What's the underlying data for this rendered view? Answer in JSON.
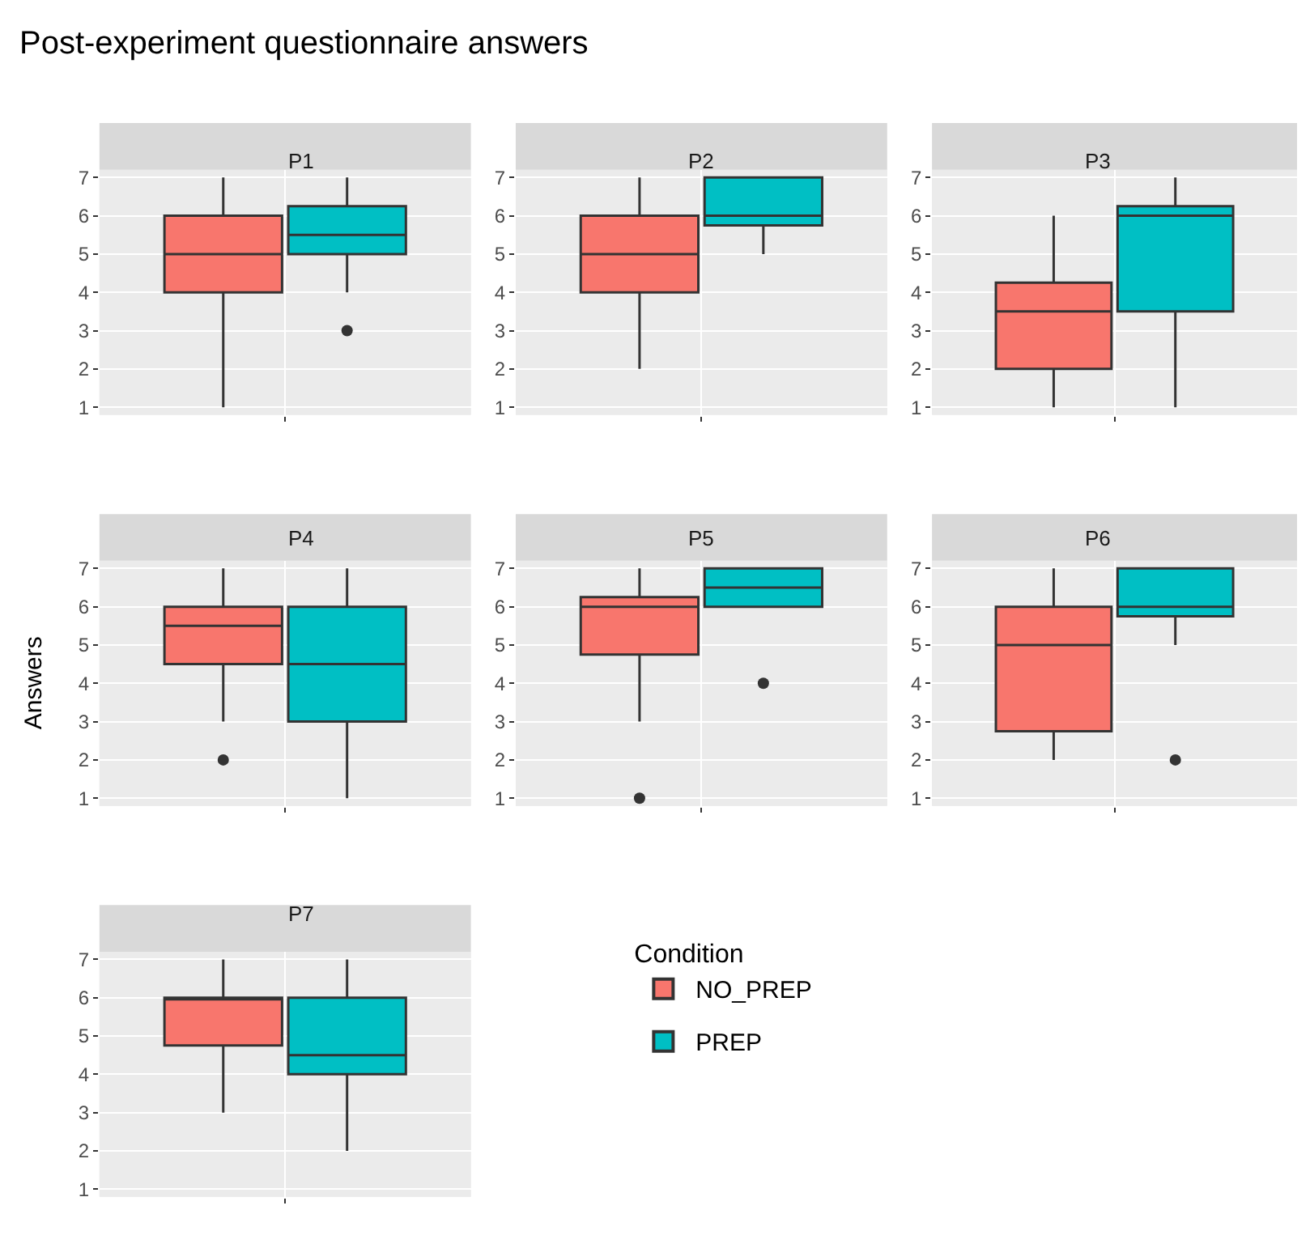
{
  "chart_data": [
    {
      "type": "box",
      "title": "P1",
      "annotations": [
        "Post-experiment questionnaire answers"
      ],
      "categories": [
        null
      ],
      "ylim": [
        0.8,
        7.2
      ],
      "yticks": [
        1,
        2,
        3,
        4,
        5,
        6,
        7
      ],
      "grid": true,
      "legend": false,
      "series": [
        {
          "color": "#f8766d",
          "boxes": [
            {
              "low": 1,
              "q1": 4,
              "median": 5,
              "q3": 6,
              "high": 7
            }
          ]
        },
        {
          "color": "#00bfc4",
          "boxes": [
            {
              "low": 4,
              "q1": 5,
              "median": 5.5,
              "q3": 6.25,
              "high": 7,
              "outliers": [
                3
              ]
            }
          ]
        }
      ]
    },
    {
      "type": "box",
      "title": "P2",
      "categories": [
        null
      ],
      "ylim": [
        0.8,
        7.2
      ],
      "yticks": [
        1,
        2,
        3,
        4,
        5,
        6,
        7
      ],
      "grid": true,
      "legend": false,
      "series": [
        {
          "color": "#f8766d",
          "boxes": [
            {
              "low": 2,
              "q1": 4,
              "median": 5,
              "q3": 6,
              "high": 7
            }
          ]
        },
        {
          "color": "#00bfc4",
          "boxes": [
            {
              "low": 5,
              "q1": 5.75,
              "median": 6,
              "q3": 7,
              "high": 7
            }
          ]
        }
      ]
    },
    {
      "type": "box",
      "title": "P3",
      "categories": [
        null
      ],
      "ylim": [
        0.8,
        7.2
      ],
      "yticks": [
        1,
        2,
        3,
        4,
        5,
        6,
        7
      ],
      "grid": true,
      "legend": false,
      "series": [
        {
          "color": "#f8766d",
          "boxes": [
            {
              "low": 1,
              "q1": 2,
              "median": 3.5,
              "q3": 4.25,
              "high": 6
            }
          ]
        },
        {
          "color": "#00bfc4",
          "boxes": [
            {
              "low": 1,
              "q1": 3.5,
              "median": 6,
              "q3": 6.25,
              "high": 7
            }
          ]
        }
      ]
    },
    {
      "type": "box",
      "title": "P4",
      "ylabel": "Answers",
      "categories": [
        null
      ],
      "ylim": [
        0.8,
        7.2
      ],
      "yticks": [
        1,
        2,
        3,
        4,
        5,
        6,
        7
      ],
      "grid": true,
      "legend": false,
      "series": [
        {
          "color": "#f8766d",
          "boxes": [
            {
              "low": 3,
              "q1": 4.5,
              "median": 5.5,
              "q3": 6,
              "high": 7,
              "outliers": [
                2
              ]
            }
          ]
        },
        {
          "color": "#00bfc4",
          "boxes": [
            {
              "low": 1,
              "q1": 3,
              "median": 4.5,
              "q3": 6,
              "high": 7
            }
          ]
        }
      ]
    },
    {
      "type": "box",
      "title": "P5",
      "categories": [
        null
      ],
      "ylim": [
        0.8,
        7.2
      ],
      "yticks": [
        1,
        2,
        3,
        4,
        5,
        6,
        7
      ],
      "grid": true,
      "legend": false,
      "series": [
        {
          "color": "#f8766d",
          "boxes": [
            {
              "low": 3,
              "q1": 4.75,
              "median": 6,
              "q3": 6.25,
              "high": 7,
              "outliers": [
                1
              ]
            }
          ]
        },
        {
          "color": "#00bfc4",
          "boxes": [
            {
              "low": 6,
              "q1": 6,
              "median": 6.5,
              "q3": 7,
              "high": 7,
              "outliers": [
                4
              ]
            }
          ]
        }
      ]
    },
    {
      "type": "box",
      "title": "P6",
      "categories": [
        null
      ],
      "ylim": [
        0.8,
        7.2
      ],
      "yticks": [
        1,
        2,
        3,
        4,
        5,
        6,
        7
      ],
      "grid": true,
      "legend": false,
      "series": [
        {
          "color": "#f8766d",
          "boxes": [
            {
              "low": 2,
              "q1": 2.75,
              "median": 5,
              "q3": 6,
              "high": 7
            }
          ]
        },
        {
          "color": "#00bfc4",
          "boxes": [
            {
              "low": 5,
              "q1": 5.75,
              "median": 6,
              "q3": 7,
              "high": 7,
              "outliers": [
                2
              ]
            }
          ]
        }
      ]
    },
    {
      "type": "box",
      "title": "P7",
      "legend_title": "Condition",
      "categories": [
        null
      ],
      "ylim": [
        0.8,
        7.2
      ],
      "yticks": [
        1,
        2,
        3,
        4,
        5,
        6,
        7
      ],
      "grid": true,
      "legend": "right",
      "series": [
        {
          "name": "NO_PREP",
          "color": "#f8766d",
          "boxes": [
            {
              "low": 3,
              "q1": 4.75,
              "median": 6,
              "q3": 6,
              "high": 7
            }
          ]
        },
        {
          "name": "PREP",
          "color": "#00bfc4",
          "boxes": [
            {
              "low": 2,
              "q1": 4,
              "median": 4.5,
              "q3": 6,
              "high": 7
            }
          ]
        }
      ]
    }
  ]
}
